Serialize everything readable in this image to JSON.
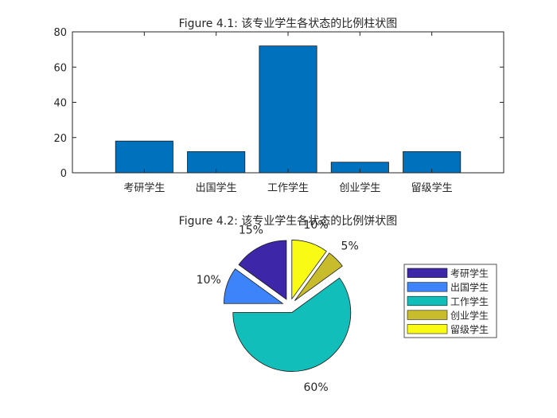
{
  "chart_data": [
    {
      "type": "bar",
      "title": "Figure 4.1: 该专业学生各状态的比例柱状图",
      "categories": [
        "考研学生",
        "出国学生",
        "工作学生",
        "创业学生",
        "留级学生"
      ],
      "values": [
        18,
        12,
        72,
        6,
        12
      ],
      "ylim": [
        0,
        80
      ],
      "yticks": [
        0,
        20,
        40,
        60,
        80
      ],
      "xlabel": "",
      "ylabel": "",
      "bar_color": "#0072BD",
      "grid": false
    },
    {
      "type": "pie",
      "title": "Figure 4.2: 该专业学生各状态的比例饼状图",
      "labels": [
        "考研学生",
        "出国学生",
        "工作学生",
        "创业学生",
        "留级学生"
      ],
      "values": [
        15,
        10,
        60,
        5,
        10
      ],
      "percent_labels": [
        "15%",
        "10%",
        "60%",
        "5%",
        "10%"
      ],
      "colors": [
        "#3E26A8",
        "#3D84FB",
        "#12BEB9",
        "#C8BC2C",
        "#F9FB15"
      ],
      "exploded": true,
      "legend_position": "right"
    }
  ]
}
